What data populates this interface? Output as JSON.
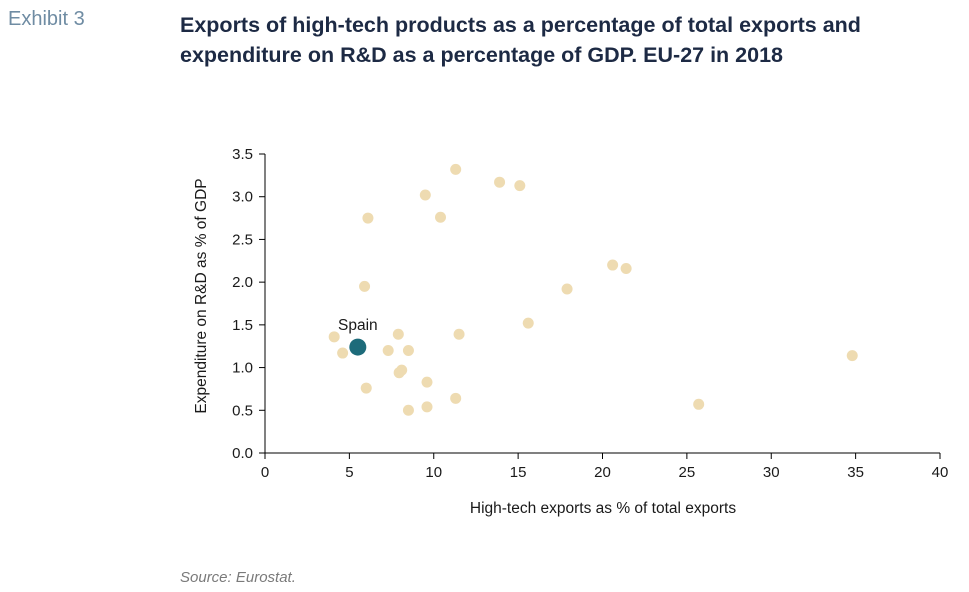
{
  "exhibit_label": "Exhibit 3",
  "title": "Exports of high-tech products as a percentage of total exports and expenditure on R&D as a percentage of GDP. EU-27 in 2018",
  "source": "Source: Eurostat.",
  "colors": {
    "point": "#eedbb1",
    "highlight": "#1d6b7a",
    "axis": "#000000"
  },
  "chart_data": {
    "type": "scatter",
    "xlabel": "High-tech exports as % of total exports",
    "ylabel": "Expenditure on R&D as % of GDP",
    "xlim": [
      0,
      40
    ],
    "ylim": [
      0,
      3.5
    ],
    "xticks": [
      0,
      5,
      10,
      15,
      20,
      25,
      30,
      35,
      40
    ],
    "yticks": [
      "0.0",
      "0.5",
      "1.0",
      "1.5",
      "2.0",
      "2.5",
      "3.0",
      "3.5"
    ],
    "grid": false,
    "points": [
      {
        "x": 11.3,
        "y": 3.32
      },
      {
        "x": 9.5,
        "y": 3.02
      },
      {
        "x": 13.9,
        "y": 3.17
      },
      {
        "x": 15.1,
        "y": 3.13
      },
      {
        "x": 6.1,
        "y": 2.75
      },
      {
        "x": 10.4,
        "y": 2.76
      },
      {
        "x": 20.6,
        "y": 2.2
      },
      {
        "x": 21.4,
        "y": 2.16
      },
      {
        "x": 5.9,
        "y": 1.95
      },
      {
        "x": 17.9,
        "y": 1.92
      },
      {
        "x": 15.6,
        "y": 1.52
      },
      {
        "x": 4.1,
        "y": 1.36
      },
      {
        "x": 7.9,
        "y": 1.39
      },
      {
        "x": 11.5,
        "y": 1.39
      },
      {
        "x": 4.6,
        "y": 1.17
      },
      {
        "x": 7.3,
        "y": 1.2
      },
      {
        "x": 8.5,
        "y": 1.2
      },
      {
        "x": 8.1,
        "y": 0.97
      },
      {
        "x": 7.95,
        "y": 0.94
      },
      {
        "x": 9.6,
        "y": 0.83
      },
      {
        "x": 6.0,
        "y": 0.76
      },
      {
        "x": 11.3,
        "y": 0.64
      },
      {
        "x": 9.6,
        "y": 0.54
      },
      {
        "x": 8.5,
        "y": 0.5
      },
      {
        "x": 25.7,
        "y": 0.57
      },
      {
        "x": 34.8,
        "y": 1.14
      }
    ],
    "highlight": {
      "label": "Spain",
      "x": 5.5,
      "y": 1.24
    }
  }
}
